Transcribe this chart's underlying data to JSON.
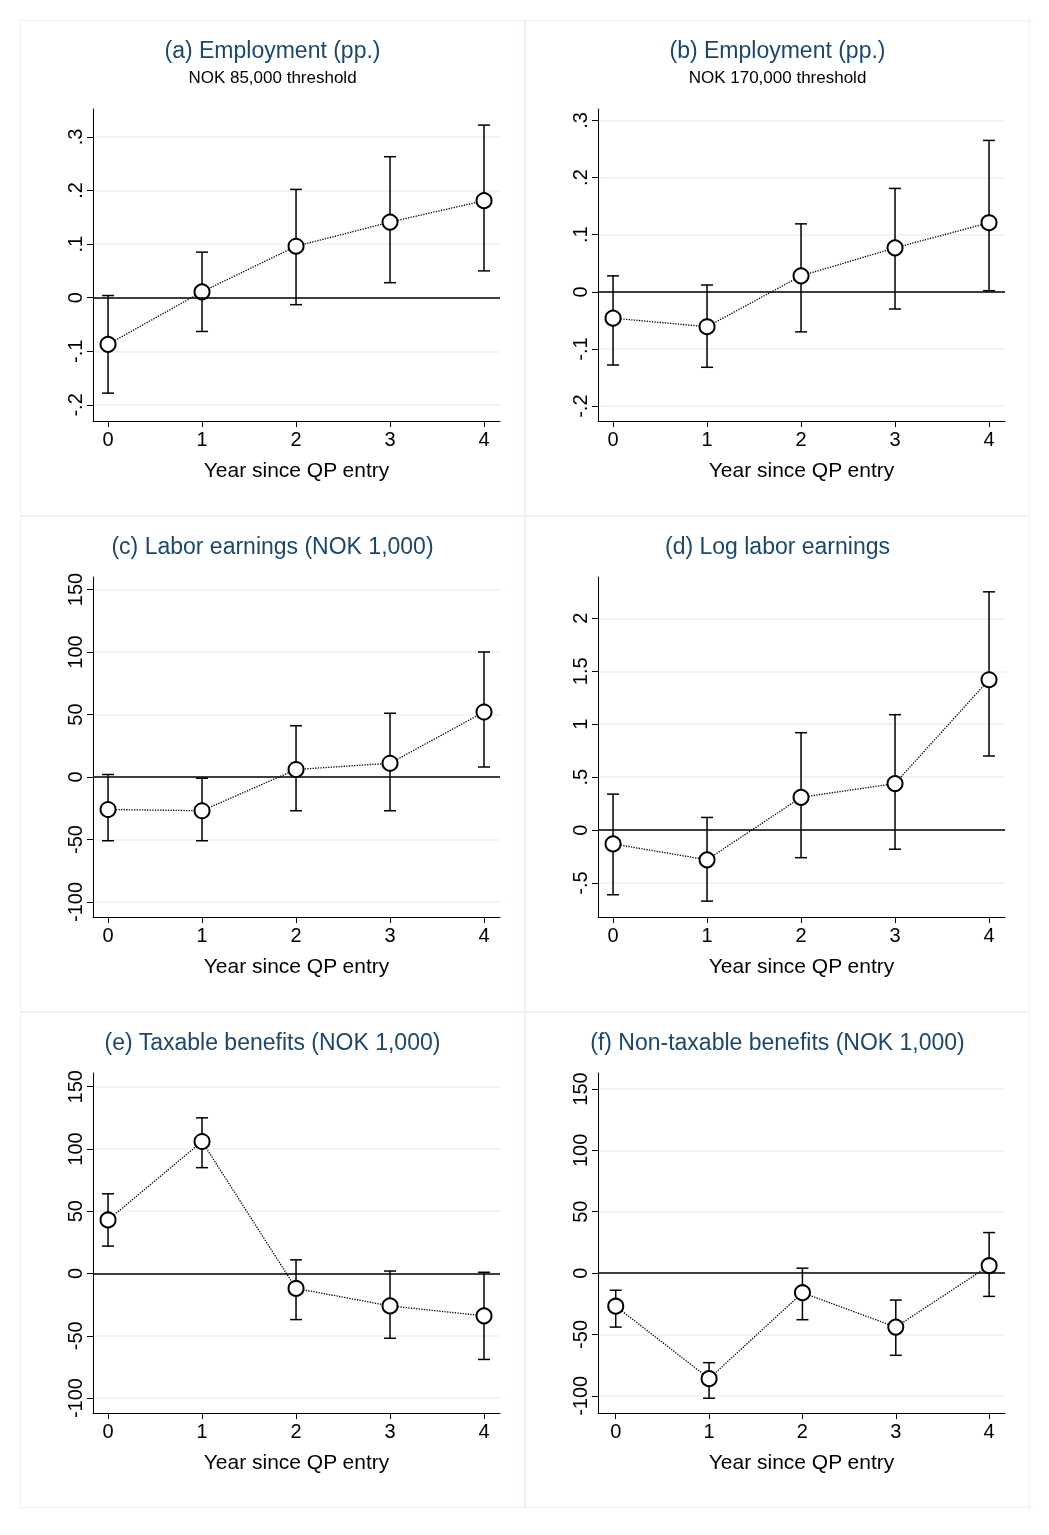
{
  "chart_data": [
    {
      "type": "line",
      "title": "(a) Employment (pp.)",
      "subtitle": "NOK 85,000 threshold",
      "xlabel": "Year since QP entry",
      "x": [
        0,
        1,
        2,
        3,
        4
      ],
      "xlim": [
        -0.16,
        4.17
      ],
      "xticks": [
        0,
        1,
        2,
        3,
        4
      ],
      "ylim": [
        -0.23,
        0.352
      ],
      "yticks": [
        {
          "value": -0.2,
          "label": "-.2"
        },
        {
          "value": -0.1,
          "label": "-.1"
        },
        0,
        {
          "value": 0.1,
          "label": ".1"
        },
        {
          "value": 0.2,
          "label": ".2"
        },
        {
          "value": 0.3,
          "label": ".3"
        }
      ],
      "series": [
        {
          "color": "#000000",
          "values": [
            -0.087,
            0.011,
            0.096,
            0.141,
            0.181
          ],
          "errors": [
            [
              -0.178,
              0.004
            ],
            [
              -0.063,
              0.085
            ],
            [
              -0.013,
              0.202
            ],
            [
              0.028,
              0.263
            ],
            [
              0.05,
              0.322
            ]
          ]
        }
      ],
      "ref_lines": [
        {
          "axis": "y",
          "value": 0,
          "color": "#000000"
        }
      ],
      "grid": "y",
      "marker": "circle",
      "line_style": "dotted"
    },
    {
      "type": "line",
      "title": "(b) Employment (pp.)",
      "subtitle": "NOK 170,000 threshold",
      "xlabel": "Year since QP entry",
      "x": [
        0,
        1,
        2,
        3,
        4
      ],
      "xlim": [
        -0.16,
        4.17
      ],
      "xticks": [
        0,
        1,
        2,
        3,
        4
      ],
      "ylim": [
        -0.226,
        0.32
      ],
      "yticks": [
        {
          "value": -0.2,
          "label": "-.2"
        },
        {
          "value": -0.1,
          "label": "-.1"
        },
        0,
        {
          "value": 0.1,
          "label": ".1"
        },
        {
          "value": 0.2,
          "label": ".2"
        },
        {
          "value": 0.3,
          "label": ".3"
        }
      ],
      "series": [
        {
          "color": "#000000",
          "values": [
            -0.046,
            -0.061,
            0.028,
            0.077,
            0.121
          ],
          "errors": [
            [
              -0.128,
              0.028
            ],
            [
              -0.132,
              0.012
            ],
            [
              -0.07,
              0.119
            ],
            [
              -0.03,
              0.181
            ],
            [
              0.002,
              0.265
            ]
          ]
        }
      ],
      "ref_lines": [
        {
          "axis": "y",
          "value": 0,
          "color": "#000000"
        }
      ],
      "grid": "y",
      "marker": "circle",
      "line_style": "dotted"
    },
    {
      "type": "line",
      "title": "(c) Labor earnings (NOK 1,000)",
      "xlabel": "Year since QP entry",
      "x": [
        0,
        1,
        2,
        3,
        4
      ],
      "xlim": [
        -0.16,
        4.17
      ],
      "xticks": [
        0,
        1,
        2,
        3,
        4
      ],
      "ylim": [
        -112,
        160
      ],
      "yticks": [
        -100,
        -50,
        0,
        50,
        100,
        150
      ],
      "series": [
        {
          "color": "#000000",
          "values": [
            -26,
            -27,
            6,
            11,
            52
          ],
          "errors": [
            [
              -51,
              2
            ],
            [
              -51,
              -1
            ],
            [
              -27,
              41
            ],
            [
              -27,
              51
            ],
            [
              8,
              100
            ]
          ]
        }
      ],
      "ref_lines": [
        {
          "axis": "y",
          "value": 0,
          "color": "#000000"
        }
      ],
      "grid": "y",
      "marker": "circle",
      "line_style": "dotted"
    },
    {
      "type": "line",
      "title": "(d) Log labor earnings",
      "xlabel": "Year since QP entry",
      "x": [
        0,
        1,
        2,
        3,
        4
      ],
      "xlim": [
        -0.16,
        4.17
      ],
      "xticks": [
        0,
        1,
        2,
        3,
        4
      ],
      "ylim": [
        -0.82,
        2.39
      ],
      "yticks": [
        {
          "value": -0.5,
          "label": "-.5"
        },
        0,
        {
          "value": 0.5,
          "label": ".5"
        },
        1,
        {
          "value": 1.5,
          "label": "1.5"
        },
        2
      ],
      "series": [
        {
          "color": "#000000",
          "values": [
            -0.13,
            -0.28,
            0.31,
            0.44,
            1.42
          ],
          "errors": [
            [
              -0.61,
              0.34
            ],
            [
              -0.67,
              0.12
            ],
            [
              -0.26,
              0.92
            ],
            [
              -0.18,
              1.09
            ],
            [
              0.7,
              2.25
            ]
          ]
        }
      ],
      "ref_lines": [
        {
          "axis": "y",
          "value": 0,
          "color": "#000000"
        }
      ],
      "grid": "y",
      "marker": "circle",
      "line_style": "dotted"
    },
    {
      "type": "line",
      "title": "(e) Taxable benefits (NOK 1,000)",
      "xlabel": "Year since QP entry",
      "x": [
        0,
        1,
        2,
        3,
        4
      ],
      "xlim": [
        -0.16,
        4.17
      ],
      "xticks": [
        0,
        1,
        2,
        3,
        4
      ],
      "ylim": [
        -112,
        161
      ],
      "yticks": [
        -100,
        -50,
        0,
        50,
        100,
        150
      ],
      "series": [
        {
          "color": "#000000",
          "values": [
            43,
            106,
            -12,
            -26,
            -34
          ],
          "errors": [
            [
              22,
              64
            ],
            [
              85,
              125
            ],
            [
              -37,
              11
            ],
            [
              -52,
              2
            ],
            [
              -69,
              1
            ]
          ]
        }
      ],
      "ref_lines": [
        {
          "axis": "y",
          "value": 0,
          "color": "#000000"
        }
      ],
      "grid": "y",
      "marker": "circle",
      "line_style": "dotted"
    },
    {
      "type": "line",
      "title": "(f) Non-taxable benefits (NOK 1,000)",
      "xlabel": "Year since QP entry",
      "x": [
        0,
        1,
        2,
        3,
        4
      ],
      "xlim": [
        -0.19,
        4.17
      ],
      "xticks": [
        0,
        1,
        2,
        3,
        4
      ],
      "ylim": [
        -114,
        163
      ],
      "yticks": [
        -100,
        -50,
        0,
        50,
        100,
        150
      ],
      "series": [
        {
          "color": "#000000",
          "values": [
            -27,
            -86,
            -16,
            -44,
            6
          ],
          "errors": [
            [
              -44,
              -14
            ],
            [
              -102,
              -73
            ],
            [
              -38,
              4
            ],
            [
              -67,
              -22
            ],
            [
              -19,
              33
            ]
          ]
        }
      ],
      "ref_lines": [
        {
          "axis": "y",
          "value": 0,
          "color": "#000000"
        }
      ],
      "grid": "y",
      "marker": "circle",
      "line_style": "dotted"
    }
  ]
}
